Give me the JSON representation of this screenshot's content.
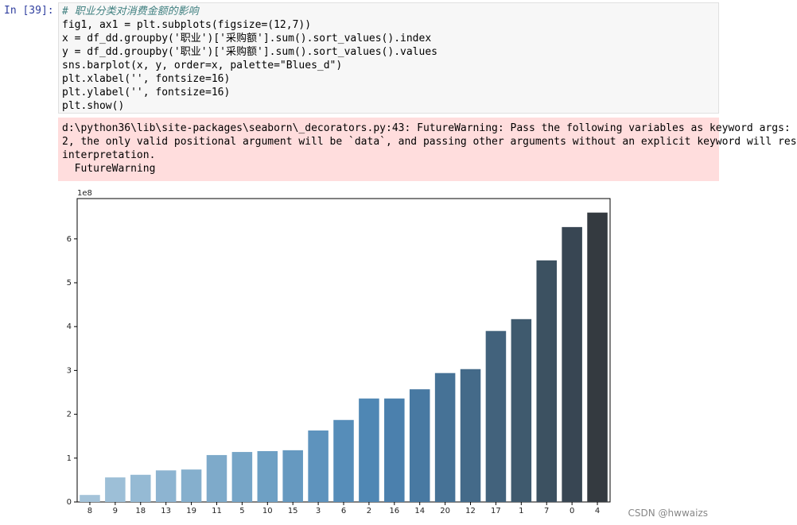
{
  "notebook": {
    "prompt": "In [39]:",
    "code_lines": [
      "# 职业分类对消费金额的影响",
      "fig1, ax1 = plt.subplots(figsize=(12,7))",
      "x = df_dd.groupby('职业')['采购额'].sum().sort_values().index",
      "y = df_dd.groupby('职业')['采购额'].sum().sort_values().values",
      "sns.barplot(x, y, order=x, palette=\"Blues_d\")",
      "plt.xlabel('', fontsize=16)",
      "plt.ylabel('', fontsize=16)",
      "plt.show()"
    ],
    "stderr_lines": [
      "d:\\python36\\lib\\site-packages\\seaborn\\_decorators.py:43: FutureWarning: Pass the following variables as keyword args:",
      "2, the only valid positional argument will be `data`, and passing other arguments without an explicit keyword will res",
      "interpretation.",
      "  FutureWarning"
    ]
  },
  "chart_data": {
    "type": "bar",
    "y_offset_label": "1e8",
    "categories": [
      "8",
      "9",
      "18",
      "13",
      "19",
      "11",
      "5",
      "10",
      "15",
      "3",
      "6",
      "2",
      "16",
      "14",
      "20",
      "12",
      "17",
      "1",
      "7",
      "0",
      "4"
    ],
    "values": [
      0.16,
      0.56,
      0.62,
      0.72,
      0.74,
      1.07,
      1.14,
      1.16,
      1.18,
      1.63,
      1.87,
      2.36,
      2.36,
      2.57,
      2.94,
      3.03,
      3.9,
      4.17,
      5.51,
      6.27,
      6.6
    ],
    "colors": [
      "#a4c3d9",
      "#9dbfd7",
      "#95bad4",
      "#8db4d1",
      "#85afcd",
      "#7eaaca",
      "#76a5c7",
      "#6ea0c4",
      "#6699c0",
      "#5e93bd",
      "#568db9",
      "#4f87b4",
      "#4b80ad",
      "#4879a2",
      "#467296",
      "#446a89",
      "#42627c",
      "#3f5a6e",
      "#3c5161",
      "#384653",
      "#343a40"
    ],
    "ylim": [
      0,
      6.92
    ],
    "yticks": [
      0,
      1,
      2,
      3,
      4,
      5,
      6
    ]
  },
  "watermark": "CSDN @hwwaizs"
}
